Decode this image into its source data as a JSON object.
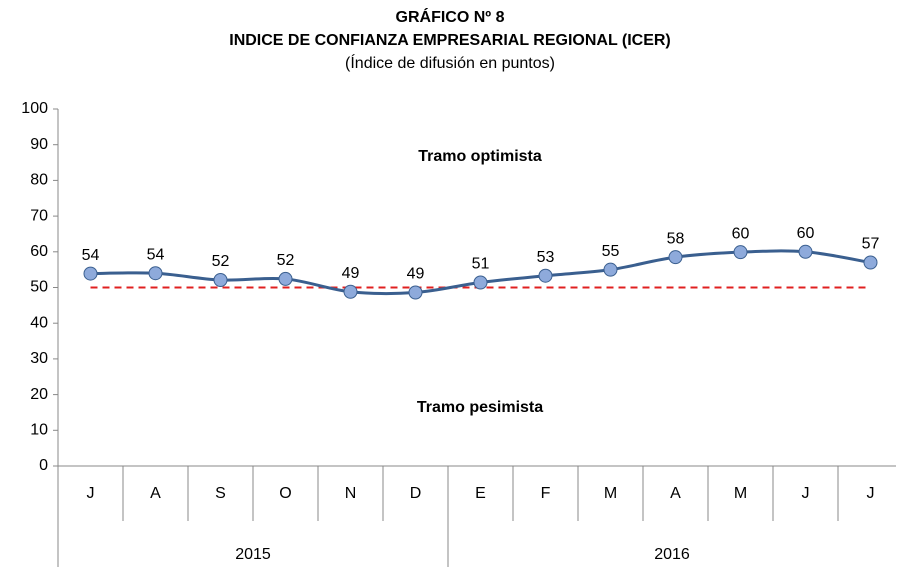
{
  "chart_data": {
    "type": "line",
    "title": [
      "GRÁFICO Nº 8",
      "INDICE DE CONFIANZA EMPRESARIAL REGIONAL (ICER)"
    ],
    "subtitle": "(Índice de difusión en puntos)",
    "categories": [
      "J",
      "A",
      "S",
      "O",
      "N",
      "D",
      "E",
      "F",
      "M",
      "A",
      "M",
      "J",
      "J"
    ],
    "groups": [
      {
        "label": "2015",
        "count": 6
      },
      {
        "label": "2016",
        "count": 7
      }
    ],
    "values": [
      53.9,
      54,
      52.1,
      52.4,
      48.8,
      48.6,
      51.4,
      53.3,
      55,
      58.5,
      59.9,
      60,
      57
    ],
    "value_labels": [
      "54",
      "54",
      "52",
      "52",
      "49",
      "49",
      "51",
      "53",
      "55",
      "58",
      "60",
      "60",
      "57"
    ],
    "color": "#3a5f8f",
    "marker_color": "#8eaadb",
    "reference_line": {
      "value": 50,
      "color": "#e02020"
    },
    "annotations": [
      "Tramo optimista",
      "Tramo pesimista"
    ],
    "ylim": [
      0,
      100
    ],
    "yticks": [
      0,
      10,
      20,
      30,
      40,
      50,
      60,
      70,
      80,
      90,
      100
    ]
  }
}
